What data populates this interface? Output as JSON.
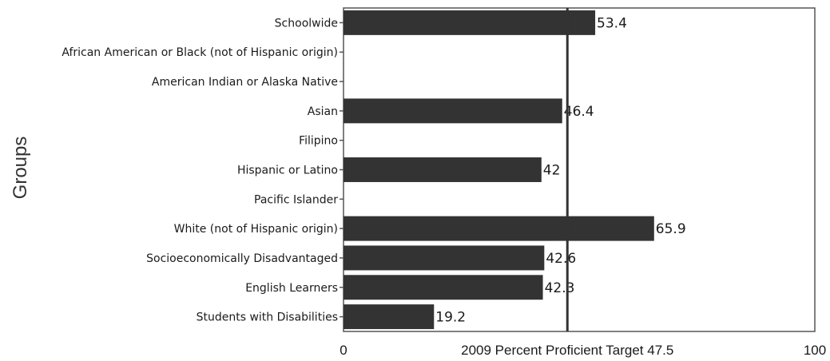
{
  "chart_data": {
    "type": "bar",
    "orientation": "horizontal",
    "ylabel": "Groups",
    "categories": [
      "Schoolwide",
      "African American or Black (not of Hispanic origin)",
      "American Indian or Alaska Native",
      "Asian",
      "Filipino",
      "Hispanic or Latino",
      "Pacific Islander",
      "White (not of Hispanic origin)",
      "Socioeconomically Disadvantaged",
      "English Learners",
      "Students with Disabilities"
    ],
    "values": [
      53.4,
      null,
      null,
      46.4,
      null,
      42,
      null,
      65.9,
      42.6,
      42.3,
      19.2
    ],
    "value_labels": [
      "53.4",
      "",
      "",
      "46.4",
      "",
      "42",
      "",
      "65.9",
      "42.6",
      "42.3",
      "19.2"
    ],
    "xlim": [
      0,
      100
    ],
    "x_ticks": [
      "0",
      "100"
    ],
    "target": {
      "value": 47.5,
      "label": "2009 Percent Proficient Target 47.5"
    },
    "grid": false,
    "colors": {
      "bar": "#333333",
      "target_line": "#333333",
      "frame": "#555555"
    }
  }
}
